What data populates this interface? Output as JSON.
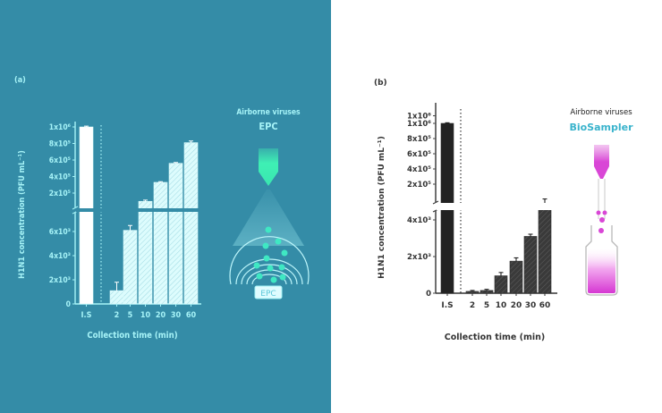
{
  "colors": {
    "panel_a_bg": "#348ca7",
    "panel_b_bg": "#ffffff",
    "panel_a_fg": "#a6f3f7",
    "panel_a_bar": "#ddfcfd",
    "panel_a_is_bar": "#ffffff",
    "panel_b_bar": "#3a3a3a",
    "panel_b_fg": "#333333",
    "epc_accent": "#3ff0b4",
    "biosampler_accent": "#d946d6",
    "biosampler_title": "#39b3cc"
  },
  "chart_data": [
    {
      "panel_label": "(a)",
      "type": "bar",
      "title": "",
      "xlabel": "Collection time (min)",
      "ylabel": "H1N1 concentration (PFU mL⁻¹)",
      "categories": [
        "I.S",
        "2",
        "5",
        "10",
        "20",
        "30",
        "60"
      ],
      "values": [
        1000000,
        1100,
        6100,
        100000,
        330000,
        560000,
        810000
      ],
      "errors": [
        10000,
        700,
        400,
        15000,
        8000,
        10000,
        20000
      ],
      "axis_break": true,
      "lower_ylim": [
        0,
        7500
      ],
      "upper_ylim": [
        0,
        1000000
      ],
      "lower_ticks": [
        {
          "value": 0,
          "label": "0"
        },
        {
          "value": 2000,
          "label": "2x10³"
        },
        {
          "value": 4000,
          "label": "4x10³"
        },
        {
          "value": 6000,
          "label": "6x10³"
        }
      ],
      "upper_ticks": [
        {
          "value": 200000,
          "label": "2x10⁵"
        },
        {
          "value": 400000,
          "label": "4x10⁵"
        },
        {
          "value": 600000,
          "label": "6x10⁵"
        },
        {
          "value": 800000,
          "label": "8x10⁵"
        },
        {
          "value": 1000000,
          "label": "1x10⁶"
        }
      ],
      "grid": false,
      "separator": "dotted line after I.S",
      "illustration": {
        "title_line1": "Airborne viruses",
        "title_line2": "EPC",
        "device_label": "EPC"
      }
    },
    {
      "panel_label": "(b)",
      "type": "bar",
      "title": "",
      "xlabel": "Collection time (min)",
      "ylabel": "H1N1 concentration (PFU mL⁻¹)",
      "categories": [
        "I.S",
        "2",
        "5",
        "10",
        "20",
        "30",
        "60"
      ],
      "values": [
        1000000,
        100,
        150,
        950,
        1750,
        3100,
        4800
      ],
      "errors": [
        8000,
        50,
        60,
        180,
        180,
        120,
        150
      ],
      "axis_break": true,
      "lower_ylim": [
        0,
        4800
      ],
      "upper_ylim": [
        0,
        1100000
      ],
      "lower_ticks": [
        {
          "value": 0,
          "label": "0"
        },
        {
          "value": 2000,
          "label": "2x10³"
        },
        {
          "value": 4000,
          "label": "4x10³"
        }
      ],
      "upper_ticks": [
        {
          "value": 200000,
          "label": "2x10⁵"
        },
        {
          "value": 400000,
          "label": "4x10⁵"
        },
        {
          "value": 600000,
          "label": "6x10⁵"
        },
        {
          "value": 800000,
          "label": "8x10⁵"
        },
        {
          "value": 1000000,
          "label": "1x10⁶"
        },
        {
          "value": 1100000,
          "label": "1x10⁶"
        }
      ],
      "grid": false,
      "separator": "dotted line after I.S",
      "illustration": {
        "title_line1": "Airborne viruses",
        "title_line2": "BioSampler"
      }
    }
  ]
}
